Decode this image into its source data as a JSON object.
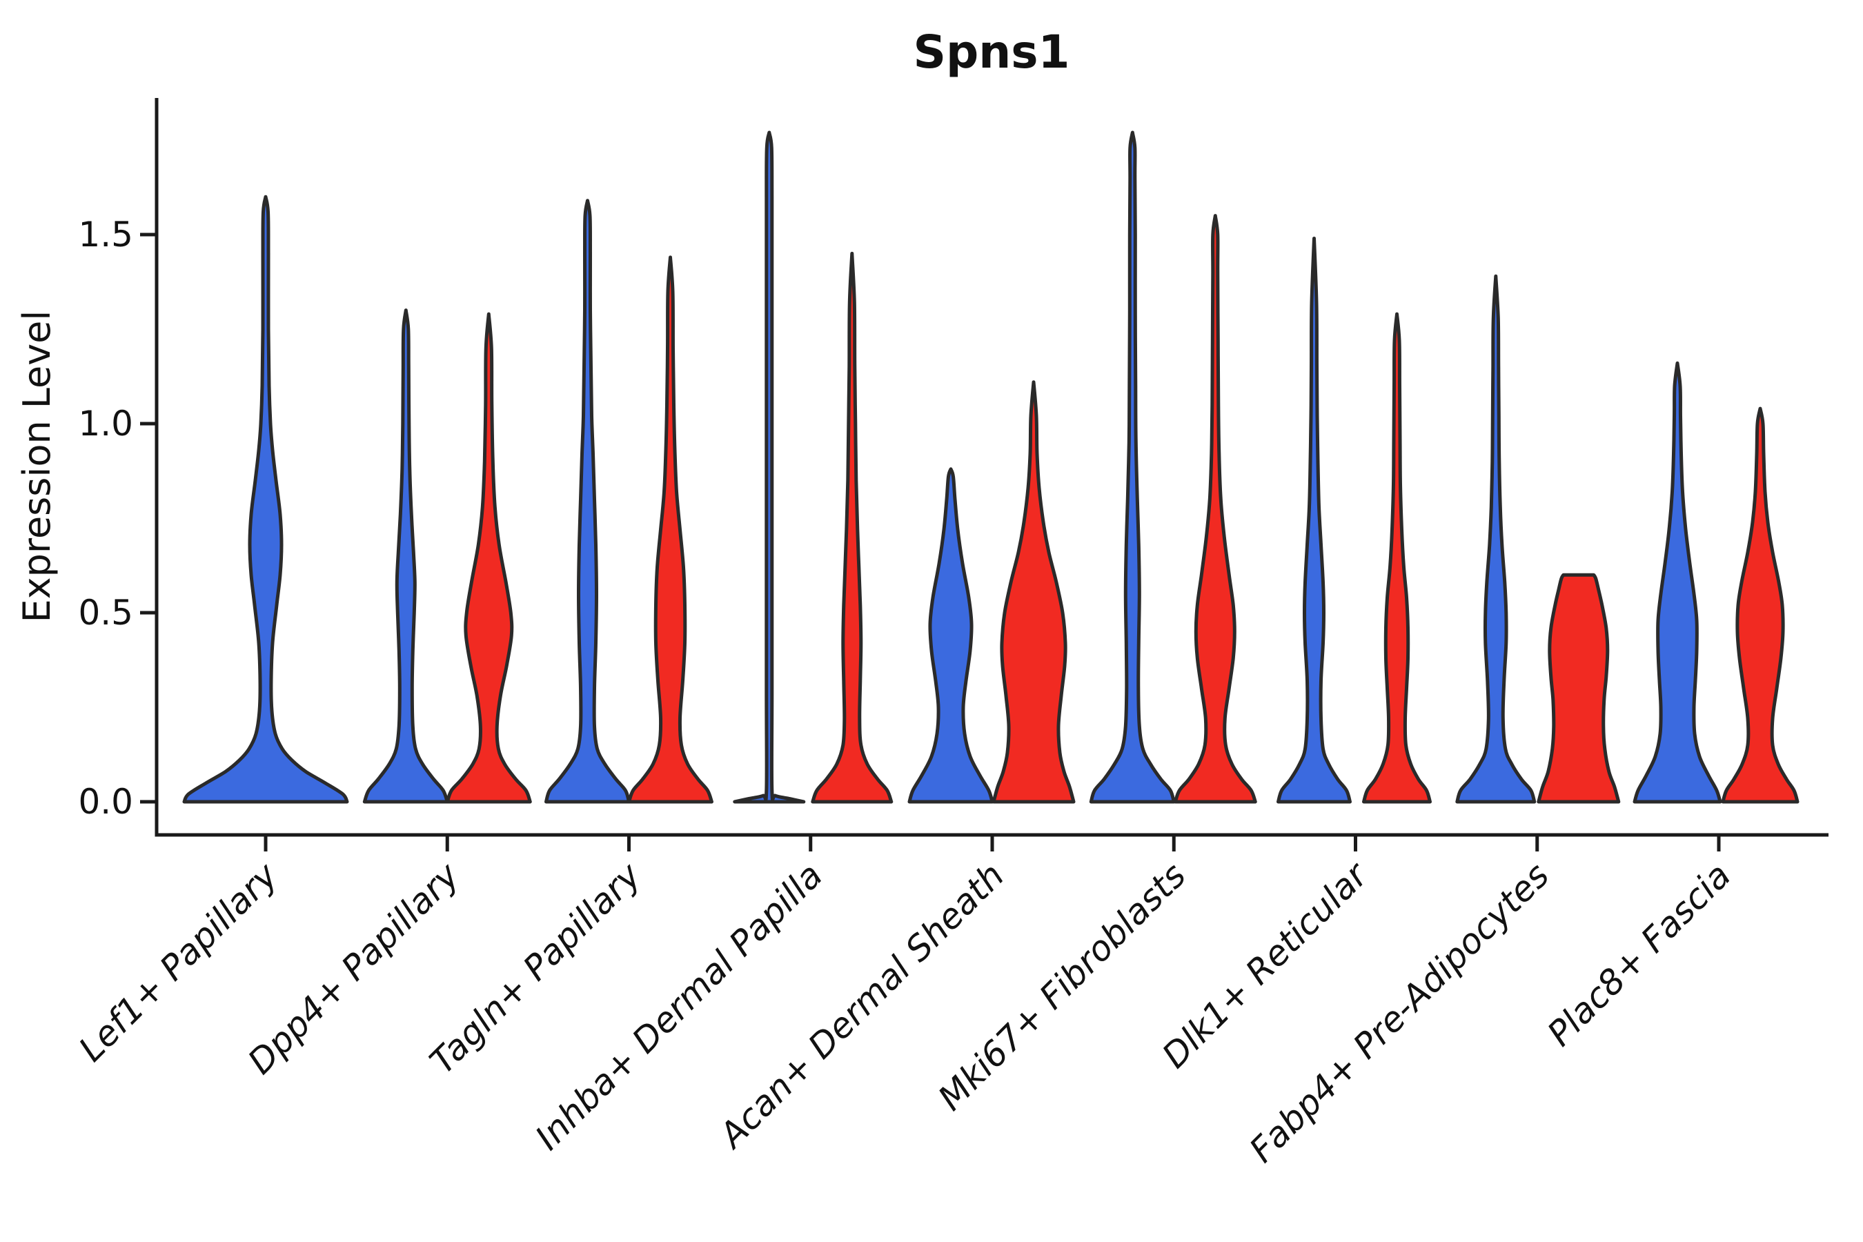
{
  "chart_data": {
    "type": "violin",
    "title": "Spns1",
    "ylabel": "Expression Level",
    "xlabel": "",
    "ylim": [
      -0.09,
      1.86
    ],
    "grid": false,
    "legend": "none",
    "yticks": [
      "0.0",
      "0.5",
      "1.0",
      "1.5"
    ],
    "ytick_values": [
      0.0,
      0.5,
      1.0,
      1.5
    ],
    "colors": {
      "blue": "#3b6adf",
      "red": "#f12a22",
      "outline": "#2a2a2a",
      "axis": "#1a1a1a"
    },
    "categories": [
      "Lef1+ Papillary",
      "Dpp4+ Papillary",
      "Tagln+ Papillary",
      "Inhba+ Dermal Papilla",
      "Acan+ Dermal Sheath",
      "Mki67+ Fibroblasts",
      "Dlk1+ Reticular",
      "Fabp4+ Pre-Adipocytes",
      "Plac8+ Fascia"
    ],
    "violins": [
      {
        "category_index": 0,
        "group": "blue",
        "offset": 0,
        "max": 1.6,
        "flat_top": false,
        "profile": [
          [
            0,
            118
          ],
          [
            0.02,
            112
          ],
          [
            0.05,
            86
          ],
          [
            0.08,
            58
          ],
          [
            0.11,
            38
          ],
          [
            0.14,
            24
          ],
          [
            0.18,
            14
          ],
          [
            0.24,
            9
          ],
          [
            0.32,
            8
          ],
          [
            0.42,
            10
          ],
          [
            0.52,
            16
          ],
          [
            0.6,
            21
          ],
          [
            0.68,
            23
          ],
          [
            0.76,
            21
          ],
          [
            0.85,
            15
          ],
          [
            0.93,
            10
          ],
          [
            1.0,
            7
          ],
          [
            1.1,
            5
          ],
          [
            1.25,
            4
          ],
          [
            1.45,
            4
          ],
          [
            1.56,
            3.5
          ],
          [
            1.6,
            0
          ]
        ]
      },
      {
        "category_index": 1,
        "group": "blue",
        "offset": -60,
        "max": 1.3,
        "flat_top": false,
        "profile": [
          [
            0,
            60
          ],
          [
            0.03,
            54
          ],
          [
            0.06,
            40
          ],
          [
            0.1,
            24
          ],
          [
            0.14,
            14
          ],
          [
            0.2,
            10
          ],
          [
            0.3,
            9
          ],
          [
            0.4,
            10
          ],
          [
            0.5,
            12
          ],
          [
            0.58,
            13
          ],
          [
            0.66,
            11
          ],
          [
            0.76,
            8
          ],
          [
            0.88,
            5.5
          ],
          [
            1.0,
            4.5
          ],
          [
            1.15,
            4
          ],
          [
            1.25,
            3.5
          ],
          [
            1.3,
            0
          ]
        ]
      },
      {
        "category_index": 1,
        "group": "red",
        "offset": 60,
        "max": 1.29,
        "flat_top": false,
        "profile": [
          [
            0,
            60
          ],
          [
            0.03,
            54
          ],
          [
            0.06,
            39
          ],
          [
            0.1,
            23
          ],
          [
            0.14,
            14
          ],
          [
            0.2,
            12
          ],
          [
            0.28,
            17
          ],
          [
            0.36,
            26
          ],
          [
            0.44,
            33
          ],
          [
            0.5,
            32
          ],
          [
            0.58,
            25
          ],
          [
            0.68,
            15
          ],
          [
            0.78,
            9
          ],
          [
            0.9,
            6
          ],
          [
            1.05,
            4.5
          ],
          [
            1.2,
            4
          ],
          [
            1.29,
            0
          ]
        ]
      },
      {
        "category_index": 2,
        "group": "blue",
        "offset": -60,
        "max": 1.59,
        "flat_top": false,
        "profile": [
          [
            0,
            60
          ],
          [
            0.03,
            55
          ],
          [
            0.06,
            41
          ],
          [
            0.1,
            25
          ],
          [
            0.14,
            14
          ],
          [
            0.2,
            10
          ],
          [
            0.3,
            10
          ],
          [
            0.42,
            12
          ],
          [
            0.55,
            13
          ],
          [
            0.68,
            12
          ],
          [
            0.8,
            10
          ],
          [
            0.92,
            8
          ],
          [
            1.02,
            6
          ],
          [
            1.15,
            5
          ],
          [
            1.3,
            4
          ],
          [
            1.45,
            4
          ],
          [
            1.55,
            3.5
          ],
          [
            1.59,
            0
          ]
        ]
      },
      {
        "category_index": 2,
        "group": "red",
        "offset": 60,
        "max": 1.44,
        "flat_top": false,
        "profile": [
          [
            0,
            60
          ],
          [
            0.03,
            54
          ],
          [
            0.06,
            40
          ],
          [
            0.1,
            25
          ],
          [
            0.15,
            16
          ],
          [
            0.22,
            14
          ],
          [
            0.32,
            18
          ],
          [
            0.42,
            21
          ],
          [
            0.52,
            21
          ],
          [
            0.62,
            19
          ],
          [
            0.72,
            14
          ],
          [
            0.82,
            9
          ],
          [
            0.93,
            6.5
          ],
          [
            1.05,
            5
          ],
          [
            1.2,
            4
          ],
          [
            1.35,
            3.5
          ],
          [
            1.44,
            0
          ]
        ]
      },
      {
        "category_index": 3,
        "group": "blue",
        "offset": -60,
        "max": 1.77,
        "flat_top": false,
        "profile": [
          [
            0,
            50
          ],
          [
            0.008,
            30
          ],
          [
            0.016,
            9
          ],
          [
            0.03,
            4
          ],
          [
            0.3,
            4
          ],
          [
            0.8,
            4
          ],
          [
            1.3,
            4
          ],
          [
            1.6,
            4
          ],
          [
            1.73,
            3.5
          ],
          [
            1.77,
            0
          ]
        ]
      },
      {
        "category_index": 3,
        "group": "red",
        "offset": 60,
        "max": 1.45,
        "flat_top": false,
        "profile": [
          [
            0,
            57
          ],
          [
            0.03,
            51
          ],
          [
            0.06,
            37
          ],
          [
            0.1,
            22
          ],
          [
            0.15,
            13
          ],
          [
            0.22,
            11
          ],
          [
            0.32,
            12
          ],
          [
            0.42,
            13
          ],
          [
            0.52,
            12
          ],
          [
            0.62,
            10
          ],
          [
            0.72,
            8
          ],
          [
            0.85,
            6
          ],
          [
            1.0,
            5
          ],
          [
            1.15,
            4
          ],
          [
            1.32,
            3.5
          ],
          [
            1.45,
            0
          ]
        ]
      },
      {
        "category_index": 4,
        "group": "blue",
        "offset": -60,
        "max": 0.88,
        "flat_top": false,
        "profile": [
          [
            0,
            60
          ],
          [
            0.03,
            55
          ],
          [
            0.07,
            42
          ],
          [
            0.12,
            28
          ],
          [
            0.18,
            20
          ],
          [
            0.25,
            18
          ],
          [
            0.32,
            22
          ],
          [
            0.4,
            28
          ],
          [
            0.47,
            30
          ],
          [
            0.54,
            26
          ],
          [
            0.63,
            17
          ],
          [
            0.72,
            10
          ],
          [
            0.8,
            6
          ],
          [
            0.86,
            3.5
          ],
          [
            0.88,
            0
          ]
        ]
      },
      {
        "category_index": 4,
        "group": "red",
        "offset": 60,
        "max": 1.11,
        "flat_top": false,
        "profile": [
          [
            0,
            58
          ],
          [
            0.04,
            52
          ],
          [
            0.08,
            44
          ],
          [
            0.13,
            38
          ],
          [
            0.2,
            36
          ],
          [
            0.28,
            40
          ],
          [
            0.36,
            45
          ],
          [
            0.42,
            46
          ],
          [
            0.5,
            42
          ],
          [
            0.58,
            33
          ],
          [
            0.66,
            22
          ],
          [
            0.74,
            14
          ],
          [
            0.83,
            8
          ],
          [
            0.92,
            5
          ],
          [
            1.02,
            4
          ],
          [
            1.11,
            0
          ]
        ]
      },
      {
        "category_index": 5,
        "group": "blue",
        "offset": -60,
        "max": 1.77,
        "flat_top": false,
        "profile": [
          [
            0,
            60
          ],
          [
            0.03,
            55
          ],
          [
            0.06,
            41
          ],
          [
            0.1,
            26
          ],
          [
            0.14,
            15
          ],
          [
            0.2,
            10
          ],
          [
            0.3,
            8.5
          ],
          [
            0.42,
            9
          ],
          [
            0.55,
            10
          ],
          [
            0.68,
            9
          ],
          [
            0.8,
            7
          ],
          [
            0.95,
            5
          ],
          [
            1.1,
            4.5
          ],
          [
            1.3,
            4
          ],
          [
            1.5,
            4
          ],
          [
            1.65,
            3.5
          ],
          [
            1.73,
            3.5
          ],
          [
            1.77,
            0
          ]
        ]
      },
      {
        "category_index": 5,
        "group": "red",
        "offset": 60,
        "max": 1.55,
        "flat_top": false,
        "profile": [
          [
            0,
            58
          ],
          [
            0.03,
            52
          ],
          [
            0.06,
            38
          ],
          [
            0.1,
            24
          ],
          [
            0.15,
            15
          ],
          [
            0.22,
            14
          ],
          [
            0.3,
            20
          ],
          [
            0.38,
            26
          ],
          [
            0.45,
            28
          ],
          [
            0.52,
            26
          ],
          [
            0.6,
            20
          ],
          [
            0.7,
            13
          ],
          [
            0.8,
            8
          ],
          [
            0.92,
            5.5
          ],
          [
            1.05,
            4.5
          ],
          [
            1.22,
            4
          ],
          [
            1.4,
            3.5
          ],
          [
            1.5,
            3.5
          ],
          [
            1.55,
            0
          ]
        ]
      },
      {
        "category_index": 6,
        "group": "blue",
        "offset": -60,
        "max": 1.49,
        "flat_top": false,
        "profile": [
          [
            0,
            52
          ],
          [
            0.03,
            47
          ],
          [
            0.06,
            34
          ],
          [
            0.1,
            21
          ],
          [
            0.14,
            13
          ],
          [
            0.22,
            10
          ],
          [
            0.32,
            10
          ],
          [
            0.42,
            13
          ],
          [
            0.5,
            14
          ],
          [
            0.58,
            13
          ],
          [
            0.68,
            10
          ],
          [
            0.78,
            7
          ],
          [
            0.9,
            5.5
          ],
          [
            1.02,
            4.5
          ],
          [
            1.15,
            4
          ],
          [
            1.32,
            3.5
          ],
          [
            1.49,
            0
          ]
        ]
      },
      {
        "category_index": 6,
        "group": "red",
        "offset": 60,
        "max": 1.29,
        "flat_top": false,
        "profile": [
          [
            0,
            48
          ],
          [
            0.03,
            43
          ],
          [
            0.06,
            31
          ],
          [
            0.1,
            20
          ],
          [
            0.15,
            13
          ],
          [
            0.22,
            12
          ],
          [
            0.3,
            14
          ],
          [
            0.38,
            16
          ],
          [
            0.46,
            16
          ],
          [
            0.54,
            14
          ],
          [
            0.62,
            10
          ],
          [
            0.72,
            7
          ],
          [
            0.84,
            5
          ],
          [
            0.96,
            4.5
          ],
          [
            1.1,
            4
          ],
          [
            1.22,
            3.5
          ],
          [
            1.29,
            0
          ]
        ]
      },
      {
        "category_index": 7,
        "group": "blue",
        "offset": -60,
        "max": 1.39,
        "flat_top": false,
        "profile": [
          [
            0,
            56
          ],
          [
            0.03,
            51
          ],
          [
            0.06,
            37
          ],
          [
            0.1,
            23
          ],
          [
            0.14,
            14
          ],
          [
            0.22,
            10.5
          ],
          [
            0.32,
            12
          ],
          [
            0.42,
            15
          ],
          [
            0.5,
            15
          ],
          [
            0.58,
            13
          ],
          [
            0.68,
            9
          ],
          [
            0.78,
            6.5
          ],
          [
            0.9,
            5
          ],
          [
            1.02,
            4.5
          ],
          [
            1.15,
            4
          ],
          [
            1.28,
            3.5
          ],
          [
            1.39,
            0
          ]
        ]
      },
      {
        "category_index": 7,
        "group": "red",
        "offset": 60,
        "max": 0.6,
        "flat_top": true,
        "profile": [
          [
            0,
            58
          ],
          [
            0.04,
            52
          ],
          [
            0.08,
            44
          ],
          [
            0.14,
            38
          ],
          [
            0.2,
            36
          ],
          [
            0.27,
            37
          ],
          [
            0.33,
            40
          ],
          [
            0.4,
            42
          ],
          [
            0.46,
            40
          ],
          [
            0.52,
            34
          ],
          [
            0.56,
            29
          ],
          [
            0.59,
            25
          ],
          [
            0.6,
            22
          ]
        ]
      },
      {
        "category_index": 8,
        "group": "blue",
        "offset": -60,
        "max": 1.16,
        "flat_top": false,
        "profile": [
          [
            0,
            62
          ],
          [
            0.03,
            57
          ],
          [
            0.07,
            45
          ],
          [
            0.12,
            32
          ],
          [
            0.18,
            25
          ],
          [
            0.25,
            24
          ],
          [
            0.32,
            26
          ],
          [
            0.4,
            28
          ],
          [
            0.48,
            28
          ],
          [
            0.55,
            24
          ],
          [
            0.63,
            18
          ],
          [
            0.72,
            12
          ],
          [
            0.82,
            7.5
          ],
          [
            0.92,
            5.5
          ],
          [
            1.02,
            4.5
          ],
          [
            1.1,
            4
          ],
          [
            1.16,
            0
          ]
        ]
      },
      {
        "category_index": 8,
        "group": "red",
        "offset": 60,
        "max": 1.04,
        "flat_top": false,
        "profile": [
          [
            0,
            54
          ],
          [
            0.03,
            49
          ],
          [
            0.06,
            38
          ],
          [
            0.1,
            26
          ],
          [
            0.15,
            18
          ],
          [
            0.22,
            18
          ],
          [
            0.3,
            24
          ],
          [
            0.38,
            30
          ],
          [
            0.45,
            33
          ],
          [
            0.52,
            32
          ],
          [
            0.58,
            27
          ],
          [
            0.66,
            18
          ],
          [
            0.74,
            11
          ],
          [
            0.82,
            7
          ],
          [
            0.92,
            5
          ],
          [
            1.0,
            4
          ],
          [
            1.04,
            0
          ]
        ]
      }
    ]
  }
}
